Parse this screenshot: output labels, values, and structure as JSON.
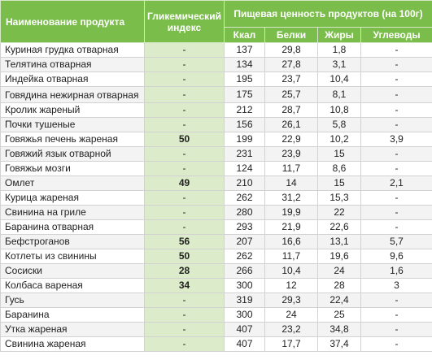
{
  "header": {
    "product": "Наименование продукта",
    "gi": "Гликемический индекс",
    "nutrition": "Пищевая ценность продуктов (на 100г)",
    "kcal": "Ккал",
    "protein": "Белки",
    "fat": "Жиры",
    "carbs": "Углеводы"
  },
  "rows": [
    {
      "name": "Куриная грудка отварная",
      "gi": "-",
      "kcal": "137",
      "protein": "29,8",
      "fat": "1,8",
      "carbs": "-"
    },
    {
      "name": "Телятина отварная",
      "gi": "-",
      "kcal": "134",
      "protein": "27,8",
      "fat": "3,1",
      "carbs": "-"
    },
    {
      "name": "Индейка отварная",
      "gi": "-",
      "kcal": "195",
      "protein": "23,7",
      "fat": "10,4",
      "carbs": "-"
    },
    {
      "name": "Говядина нежирная отварная",
      "gi": "-",
      "kcal": "175",
      "protein": "25,7",
      "fat": "8,1",
      "carbs": "-"
    },
    {
      "name": "Кролик жареный",
      "gi": "-",
      "kcal": "212",
      "protein": "28,7",
      "fat": "10,8",
      "carbs": "-"
    },
    {
      "name": "Почки тушеные",
      "gi": "-",
      "kcal": "156",
      "protein": "26,1",
      "fat": "5,8",
      "carbs": "-"
    },
    {
      "name": "Говяжья печень жареная",
      "gi": "50",
      "kcal": "199",
      "protein": "22,9",
      "fat": "10,2",
      "carbs": "3,9"
    },
    {
      "name": "Говяжий язык отварной",
      "gi": "-",
      "kcal": "231",
      "protein": "23,9",
      "fat": "15",
      "carbs": "-"
    },
    {
      "name": "Говяжьи мозги",
      "gi": "-",
      "kcal": "124",
      "protein": "11,7",
      "fat": "8,6",
      "carbs": "-"
    },
    {
      "name": "Омлет",
      "gi": "49",
      "kcal": "210",
      "protein": "14",
      "fat": "15",
      "carbs": "2,1"
    },
    {
      "name": "Курица жареная",
      "gi": "-",
      "kcal": "262",
      "protein": "31,2",
      "fat": "15,3",
      "carbs": "-"
    },
    {
      "name": "Свинина на гриле",
      "gi": "-",
      "kcal": "280",
      "protein": "19,9",
      "fat": "22",
      "carbs": "-"
    },
    {
      "name": "Баранина отварная",
      "gi": "-",
      "kcal": "293",
      "protein": "21,9",
      "fat": "22,6",
      "carbs": "-"
    },
    {
      "name": "Бефстроганов",
      "gi": "56",
      "kcal": "207",
      "protein": "16,6",
      "fat": "13,1",
      "carbs": "5,7"
    },
    {
      "name": "Котлеты из свинины",
      "gi": "50",
      "kcal": "262",
      "protein": "11,7",
      "fat": "19,6",
      "carbs": "9,6"
    },
    {
      "name": "Сосиски",
      "gi": "28",
      "kcal": "266",
      "protein": "10,4",
      "fat": "24",
      "carbs": "1,6"
    },
    {
      "name": "Колбаса вареная",
      "gi": "34",
      "kcal": "300",
      "protein": "12",
      "fat": "28",
      "carbs": "3"
    },
    {
      "name": "Гусь",
      "gi": "-",
      "kcal": "319",
      "protein": "29,3",
      "fat": "22,4",
      "carbs": "-"
    },
    {
      "name": "Баранина",
      "gi": "-",
      "kcal": "300",
      "protein": "24",
      "fat": "25",
      "carbs": "-"
    },
    {
      "name": "Утка жареная",
      "gi": "-",
      "kcal": "407",
      "protein": "23,2",
      "fat": "34,8",
      "carbs": "-"
    },
    {
      "name": "Свинина жареная",
      "gi": "-",
      "kcal": "407",
      "protein": "17,7",
      "fat": "37,4",
      "carbs": "-"
    }
  ]
}
